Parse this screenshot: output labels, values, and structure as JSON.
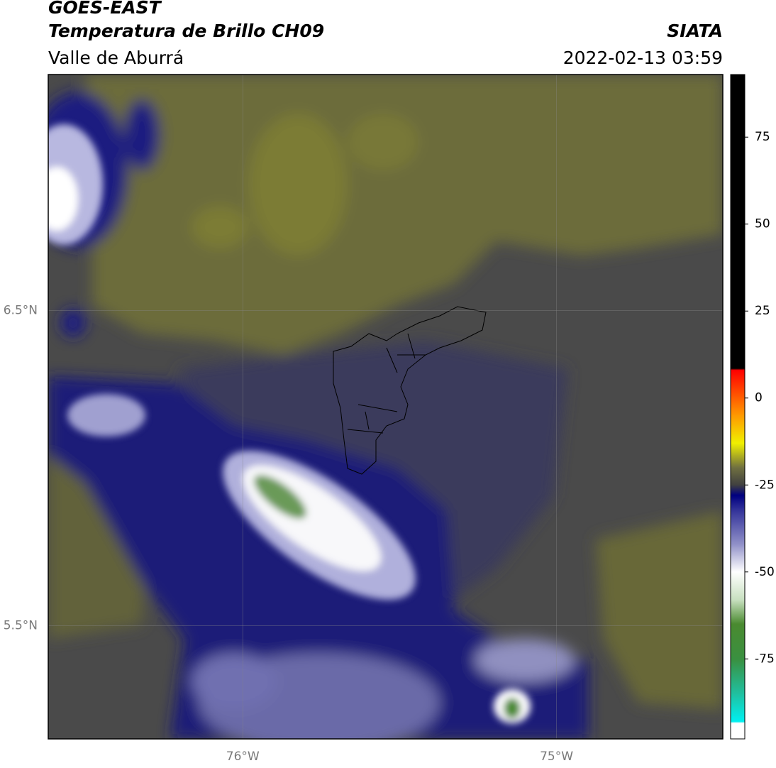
{
  "header": {
    "title": "GOES-EAST",
    "subtitle": "Temperatura de Brillo CH09",
    "source": "SIATA",
    "region": "Valle de Aburrá",
    "datetime": "2022-02-13 03:59"
  },
  "map": {
    "lon_range": [
      -76.62,
      -74.47
    ],
    "lat_range": [
      5.14,
      7.25
    ],
    "lat_ticks": [
      {
        "value": 6.5,
        "label": "6.5°N"
      },
      {
        "value": 5.5,
        "label": "5.5°N"
      }
    ],
    "lon_ticks": [
      {
        "value": -76,
        "label": "76°W"
      },
      {
        "value": -75,
        "label": "75°W"
      }
    ]
  },
  "colorbar": {
    "range": [
      -98,
      93
    ],
    "ticks": [
      75,
      50,
      25,
      0,
      -25,
      -50,
      -75
    ],
    "stops": [
      [
        -98,
        "#ffffff"
      ],
      [
        -93.5,
        "#ffffff"
      ],
      [
        -93,
        "#00f0f0"
      ],
      [
        -85,
        "#20c0a0"
      ],
      [
        -75,
        "#3a9040"
      ],
      [
        -65,
        "#4a8a30"
      ],
      [
        -58,
        "#c8e0c0"
      ],
      [
        -50,
        "#ffffff"
      ],
      [
        -42,
        "#9090c8"
      ],
      [
        -32,
        "#303098"
      ],
      [
        -28,
        "#000080"
      ],
      [
        -25,
        "#404040"
      ],
      [
        -20,
        "#707040"
      ],
      [
        -13,
        "#f0f000"
      ],
      [
        -5,
        "#ff9900"
      ],
      [
        8,
        "#ff0000"
      ],
      [
        8.5,
        "#000000"
      ],
      [
        93,
        "#000000"
      ]
    ]
  }
}
